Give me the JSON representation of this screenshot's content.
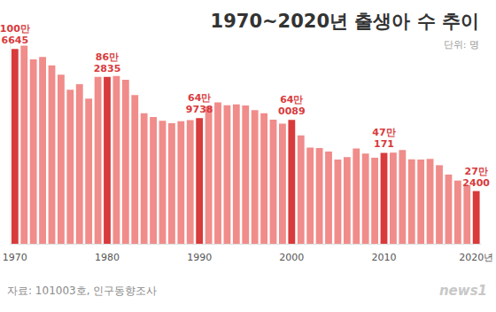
{
  "chart_data": {
    "type": "bar",
    "title": "1970~2020년 출생아 수 추이",
    "subtitle": "단위: 명",
    "source": "자료: 101003호, 인구동향조사",
    "watermark": "news1",
    "categories": [
      "1970",
      null,
      null,
      null,
      null,
      null,
      null,
      null,
      null,
      null,
      "1980",
      null,
      null,
      null,
      null,
      null,
      null,
      null,
      null,
      null,
      "1990",
      null,
      null,
      null,
      null,
      null,
      null,
      null,
      null,
      null,
      "2000",
      null,
      null,
      null,
      null,
      null,
      null,
      null,
      null,
      null,
      "2010",
      null,
      null,
      null,
      null,
      null,
      null,
      null,
      null,
      null,
      "2020년"
    ],
    "values": [
      1006645,
      1024773,
      952780,
      965521,
      922823,
      874030,
      796331,
      825339,
      750728,
      862669,
      862835,
      867409,
      848312,
      769155,
      674793,
      655489,
      636019,
      623831,
      633092,
      639431,
      649738,
      709275,
      730678,
      715826,
      721185,
      715020,
      691226,
      675394,
      641594,
      620668,
      640089,
      559934,
      496911,
      495036,
      476958,
      435031,
      448153,
      493189,
      465892,
      444849,
      470171,
      471265,
      484550,
      436455,
      435435,
      438420,
      406243,
      357771,
      326822,
      302676,
      272400
    ],
    "value_labels": [
      "100만\n6645",
      null,
      null,
      null,
      null,
      null,
      null,
      null,
      null,
      null,
      "86만\n2835",
      null,
      null,
      null,
      null,
      null,
      null,
      null,
      null,
      null,
      "64만\n9738",
      null,
      null,
      null,
      null,
      null,
      null,
      null,
      null,
      null,
      "64만\n0089",
      null,
      null,
      null,
      null,
      null,
      null,
      null,
      null,
      null,
      "47만\n171",
      null,
      null,
      null,
      null,
      null,
      null,
      null,
      null,
      null,
      "27만\n2400"
    ],
    "colors": [
      "#d93a3c",
      "#f08c8a",
      "#f08c8a",
      "#f08c8a",
      "#f08c8a",
      "#f08c8a",
      "#f08c8a",
      "#f08c8a",
      "#f08c8a",
      "#f08c8a",
      "#d93a3c",
      "#f08c8a",
      "#f08c8a",
      "#f08c8a",
      "#f08c8a",
      "#f08c8a",
      "#f08c8a",
      "#f08c8a",
      "#f08c8a",
      "#f08c8a",
      "#d93a3c",
      "#f08c8a",
      "#f08c8a",
      "#f08c8a",
      "#f08c8a",
      "#f08c8a",
      "#f08c8a",
      "#f08c8a",
      "#f08c8a",
      "#f08c8a",
      "#d93a3c",
      "#f08c8a",
      "#f08c8a",
      "#f08c8a",
      "#f08c8a",
      "#f08c8a",
      "#f08c8a",
      "#f08c8a",
      "#f08c8a",
      "#f08c8a",
      "#d93a3c",
      "#f08c8a",
      "#f08c8a",
      "#f08c8a",
      "#f08c8a",
      "#f08c8a",
      "#f08c8a",
      "#f08c8a",
      "#f08c8a",
      "#f08c8a",
      "#d93a3c"
    ],
    "ylim": [
      0,
      1100000
    ],
    "grid": false,
    "data_labels": true,
    "tick_labels": "x"
  }
}
